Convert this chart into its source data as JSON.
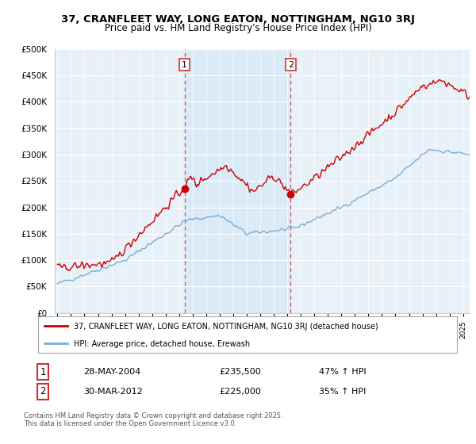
{
  "title": "37, CRANFLEET WAY, LONG EATON, NOTTINGHAM, NG10 3RJ",
  "subtitle": "Price paid vs. HM Land Registry's House Price Index (HPI)",
  "ylim": [
    0,
    500000
  ],
  "yticks": [
    0,
    50000,
    100000,
    150000,
    200000,
    250000,
    300000,
    350000,
    400000,
    450000,
    500000
  ],
  "ytick_labels": [
    "£0",
    "£50K",
    "£100K",
    "£150K",
    "£200K",
    "£250K",
    "£300K",
    "£350K",
    "£400K",
    "£450K",
    "£500K"
  ],
  "xlim_start": 1994.8,
  "xlim_end": 2025.5,
  "sale1_x": 2004.41,
  "sale1_y": 235500,
  "sale2_x": 2012.24,
  "sale2_y": 225000,
  "sale1_label": "1",
  "sale2_label": "2",
  "legend_line1": "37, CRANFLEET WAY, LONG EATON, NOTTINGHAM, NG10 3RJ (detached house)",
  "legend_line2": "HPI: Average price, detached house, Erewash",
  "table_row1": [
    "1",
    "28-MAY-2004",
    "£235,500",
    "47% ↑ HPI"
  ],
  "table_row2": [
    "2",
    "30-MAR-2012",
    "£225,000",
    "35% ↑ HPI"
  ],
  "footnote": "Contains HM Land Registry data © Crown copyright and database right 2025.\nThis data is licensed under the Open Government Licence v3.0.",
  "red_line_color": "#cc0000",
  "blue_line_color": "#7aafd4",
  "shade_color": "#dbeaf7",
  "bg_color": "#e8f0f8",
  "grid_color": "#ffffff"
}
